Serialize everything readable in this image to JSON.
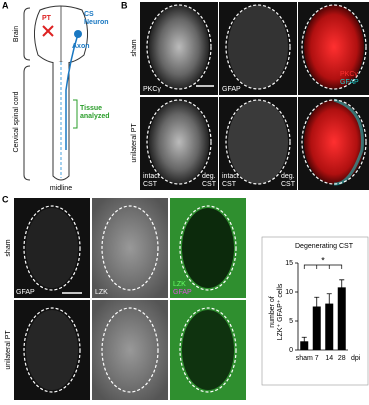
{
  "panel_labels": [
    "A",
    "B",
    "C"
  ],
  "diagram": {
    "regions": [
      "Brain",
      "Cervical spinal cord"
    ],
    "pt": "PT",
    "neuron": [
      "CS",
      "Neuron"
    ],
    "axon": "Axon",
    "tissue": [
      "Tissue",
      "analyzed"
    ],
    "midline": "midline"
  },
  "panel_b": {
    "rows": [
      "sham",
      "unilateral PT"
    ],
    "stains": [
      "PKCγ",
      "GFAP"
    ],
    "merge": [
      "PKCγ",
      "GFAP"
    ],
    "regions": [
      [
        "intact",
        "CST",
        "deg.",
        "CST"
      ],
      [
        "intact",
        "CST",
        "deg.",
        "CST"
      ]
    ]
  },
  "panel_c": {
    "rows": [
      "sham",
      "unilateral PT"
    ],
    "stains": [
      "GFAP",
      "LZK"
    ],
    "merge": [
      "LZK",
      "GFAP"
    ]
  },
  "chart_data": {
    "type": "bar",
    "title": "Degenerating CST",
    "y_label": [
      "number of",
      "LZK⁺ GFAP⁺ cells"
    ],
    "x_label": "dpi",
    "categories": [
      "sham",
      "7",
      "14",
      "28"
    ],
    "values": [
      1.5,
      7.5,
      8,
      10.8
    ],
    "errors": [
      0.7,
      1.6,
      1.7,
      1.3
    ],
    "color": "#000000",
    "ylim": [
      0,
      15
    ],
    "yticks": [
      0,
      5,
      10,
      15
    ],
    "significance": "*"
  }
}
